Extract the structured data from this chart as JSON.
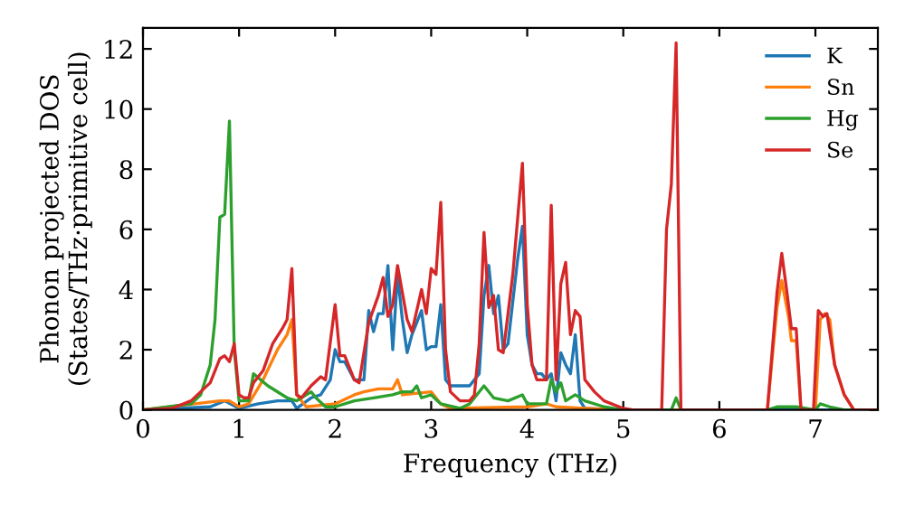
{
  "chart_data": {
    "type": "line",
    "xlabel": "Frequency (THz)",
    "ylabel": "Phonon projected DOS\n(States/THz·primitive cell)",
    "xlim": [
      0,
      7.65
    ],
    "ylim": [
      0,
      12.7
    ],
    "xticks": [
      0,
      1,
      2,
      3,
      4,
      5,
      6,
      7
    ],
    "yticks": [
      0,
      2,
      4,
      6,
      8,
      10,
      12
    ],
    "grid": false,
    "legend": "top right",
    "marker": "none",
    "line_style": "solid",
    "series": [
      {
        "name": "K",
        "color": "#1f77b4",
        "x": [
          0,
          0.7,
          0.85,
          1.0,
          1.2,
          1.4,
          1.55,
          1.6,
          1.75,
          1.85,
          1.95,
          2.0,
          2.05,
          2.1,
          2.2,
          2.3,
          2.35,
          2.4,
          2.45,
          2.5,
          2.55,
          2.6,
          2.65,
          2.7,
          2.75,
          2.8,
          2.9,
          2.95,
          3.0,
          3.05,
          3.1,
          3.15,
          3.2,
          3.3,
          3.4,
          3.5,
          3.55,
          3.6,
          3.65,
          3.7,
          3.75,
          3.8,
          3.9,
          3.95,
          4.0,
          4.05,
          4.1,
          4.15,
          4.2,
          4.25,
          4.3,
          4.35,
          4.4,
          4.45,
          4.5,
          4.55,
          4.6,
          5.0,
          7.65
        ],
        "values": [
          0,
          0.1,
          0.3,
          0.05,
          0.2,
          0.3,
          0.3,
          0.05,
          0.4,
          0.5,
          1.0,
          2.0,
          1.6,
          1.6,
          1.0,
          1.0,
          3.3,
          2.6,
          3.2,
          3.2,
          4.8,
          2.0,
          4.5,
          3.0,
          1.9,
          2.5,
          3.3,
          2.0,
          2.1,
          2.1,
          3.5,
          1.0,
          0.8,
          0.8,
          0.8,
          1.2,
          3.8,
          4.8,
          3.2,
          3.8,
          2.0,
          2.2,
          5.0,
          6.1,
          2.5,
          1.5,
          1.2,
          1.2,
          1.0,
          1.2,
          0.3,
          1.9,
          1.5,
          1.2,
          2.5,
          0.3,
          0.05,
          0,
          0
        ]
      },
      {
        "name": "Sn",
        "color": "#ff7f0e",
        "x": [
          0,
          0.8,
          0.9,
          1.0,
          1.1,
          1.25,
          1.4,
          1.5,
          1.55,
          1.6,
          1.7,
          2.0,
          2.2,
          2.3,
          2.45,
          2.6,
          2.65,
          2.7,
          3.0,
          3.1,
          3.2,
          4.0,
          4.2,
          4.3,
          4.6,
          5.0,
          6.5,
          6.6,
          6.65,
          6.72,
          6.75,
          6.8,
          6.85,
          7.0,
          7.05,
          7.1,
          7.15,
          7.2,
          7.3,
          7.4,
          7.65
        ],
        "values": [
          0,
          0.3,
          0.3,
          0.1,
          0.2,
          1.0,
          2.0,
          2.5,
          3.0,
          0.5,
          0.1,
          0.2,
          0.5,
          0.6,
          0.7,
          0.7,
          1.0,
          0.5,
          0.6,
          0.2,
          0.05,
          0.1,
          0.2,
          0.1,
          0.05,
          0,
          0,
          3.4,
          4.3,
          3.1,
          2.3,
          2.3,
          0,
          0,
          3.0,
          3.2,
          3.0,
          1.5,
          0.5,
          0,
          0
        ]
      },
      {
        "name": "Hg",
        "color": "#2ca02c",
        "x": [
          0,
          0.5,
          0.6,
          0.7,
          0.75,
          0.8,
          0.85,
          0.9,
          0.95,
          1.0,
          1.1,
          1.15,
          1.3,
          1.5,
          1.6,
          1.75,
          1.8,
          1.9,
          2.0,
          2.2,
          2.4,
          2.6,
          2.7,
          2.8,
          2.85,
          2.9,
          3.0,
          3.1,
          3.3,
          3.4,
          3.55,
          3.65,
          3.8,
          3.95,
          4.0,
          4.2,
          4.25,
          4.3,
          4.35,
          4.4,
          4.5,
          4.6,
          4.8,
          5.0,
          5.5,
          5.55,
          5.6,
          6.5,
          6.6,
          6.8,
          7.0,
          7.05,
          7.15,
          7.3,
          7.65
        ],
        "values": [
          0,
          0.2,
          0.5,
          1.5,
          3,
          6.4,
          6.5,
          9.6,
          2,
          0.3,
          0.3,
          1.2,
          0.8,
          0.4,
          0.3,
          0.6,
          0.4,
          0.1,
          0.1,
          0.3,
          0.4,
          0.5,
          0.6,
          0.6,
          0.8,
          0.4,
          0.5,
          0.2,
          0.05,
          0.2,
          0.8,
          0.4,
          0.3,
          0.5,
          0.2,
          0.2,
          1.0,
          0.6,
          0.9,
          0.3,
          0.5,
          0.3,
          0.1,
          0,
          0,
          0.4,
          0,
          0,
          0.1,
          0.1,
          0,
          0.2,
          0.1,
          0,
          0
        ]
      },
      {
        "name": "Se",
        "color": "#d62728",
        "x": [
          0,
          0.3,
          0.5,
          0.7,
          0.8,
          0.85,
          0.9,
          0.95,
          1.0,
          1.05,
          1.1,
          1.15,
          1.25,
          1.35,
          1.45,
          1.5,
          1.55,
          1.6,
          1.65,
          1.75,
          1.85,
          1.9,
          2.0,
          2.05,
          2.1,
          2.2,
          2.25,
          2.35,
          2.45,
          2.5,
          2.55,
          2.6,
          2.65,
          2.75,
          2.8,
          2.9,
          2.95,
          3.0,
          3.05,
          3.1,
          3.15,
          3.2,
          3.3,
          3.4,
          3.45,
          3.5,
          3.55,
          3.6,
          3.65,
          3.7,
          3.75,
          3.85,
          3.95,
          4.0,
          4.05,
          4.1,
          4.2,
          4.25,
          4.3,
          4.35,
          4.4,
          4.45,
          4.5,
          4.55,
          4.6,
          4.7,
          4.8,
          5.0,
          5.1,
          5.4,
          5.45,
          5.5,
          5.55,
          5.6,
          6.5,
          6.6,
          6.65,
          6.7,
          6.75,
          6.8,
          6.85,
          6.98,
          7.03,
          7.08,
          7.12,
          7.2,
          7.3,
          7.4,
          7.65
        ],
        "values": [
          0,
          0.05,
          0.3,
          0.9,
          1.7,
          1.8,
          1.6,
          2.2,
          0.5,
          0.4,
          0.4,
          0.9,
          1.3,
          2.2,
          2.7,
          3.0,
          4.7,
          0.5,
          0.4,
          0.8,
          1.1,
          1.0,
          3.5,
          1.8,
          1.8,
          1.0,
          0.9,
          2.9,
          3.8,
          4.4,
          3.1,
          3.5,
          4.8,
          3.0,
          2.6,
          4.0,
          3.2,
          4.7,
          4.5,
          6.9,
          2.0,
          0.6,
          0.3,
          0.3,
          0.5,
          2.2,
          5.9,
          3.4,
          3.8,
          2.0,
          1.9,
          4.5,
          8.2,
          3.5,
          1.5,
          1.0,
          1.0,
          6.8,
          1.0,
          4.2,
          4.9,
          2.5,
          3.3,
          3.1,
          1.0,
          0.6,
          0.3,
          0.05,
          0,
          0,
          6.0,
          7.5,
          12.2,
          0,
          0,
          3.9,
          5.2,
          4.0,
          2.7,
          2.7,
          0,
          0,
          3.3,
          3.1,
          3.2,
          1.5,
          0.5,
          0,
          0
        ]
      }
    ]
  }
}
